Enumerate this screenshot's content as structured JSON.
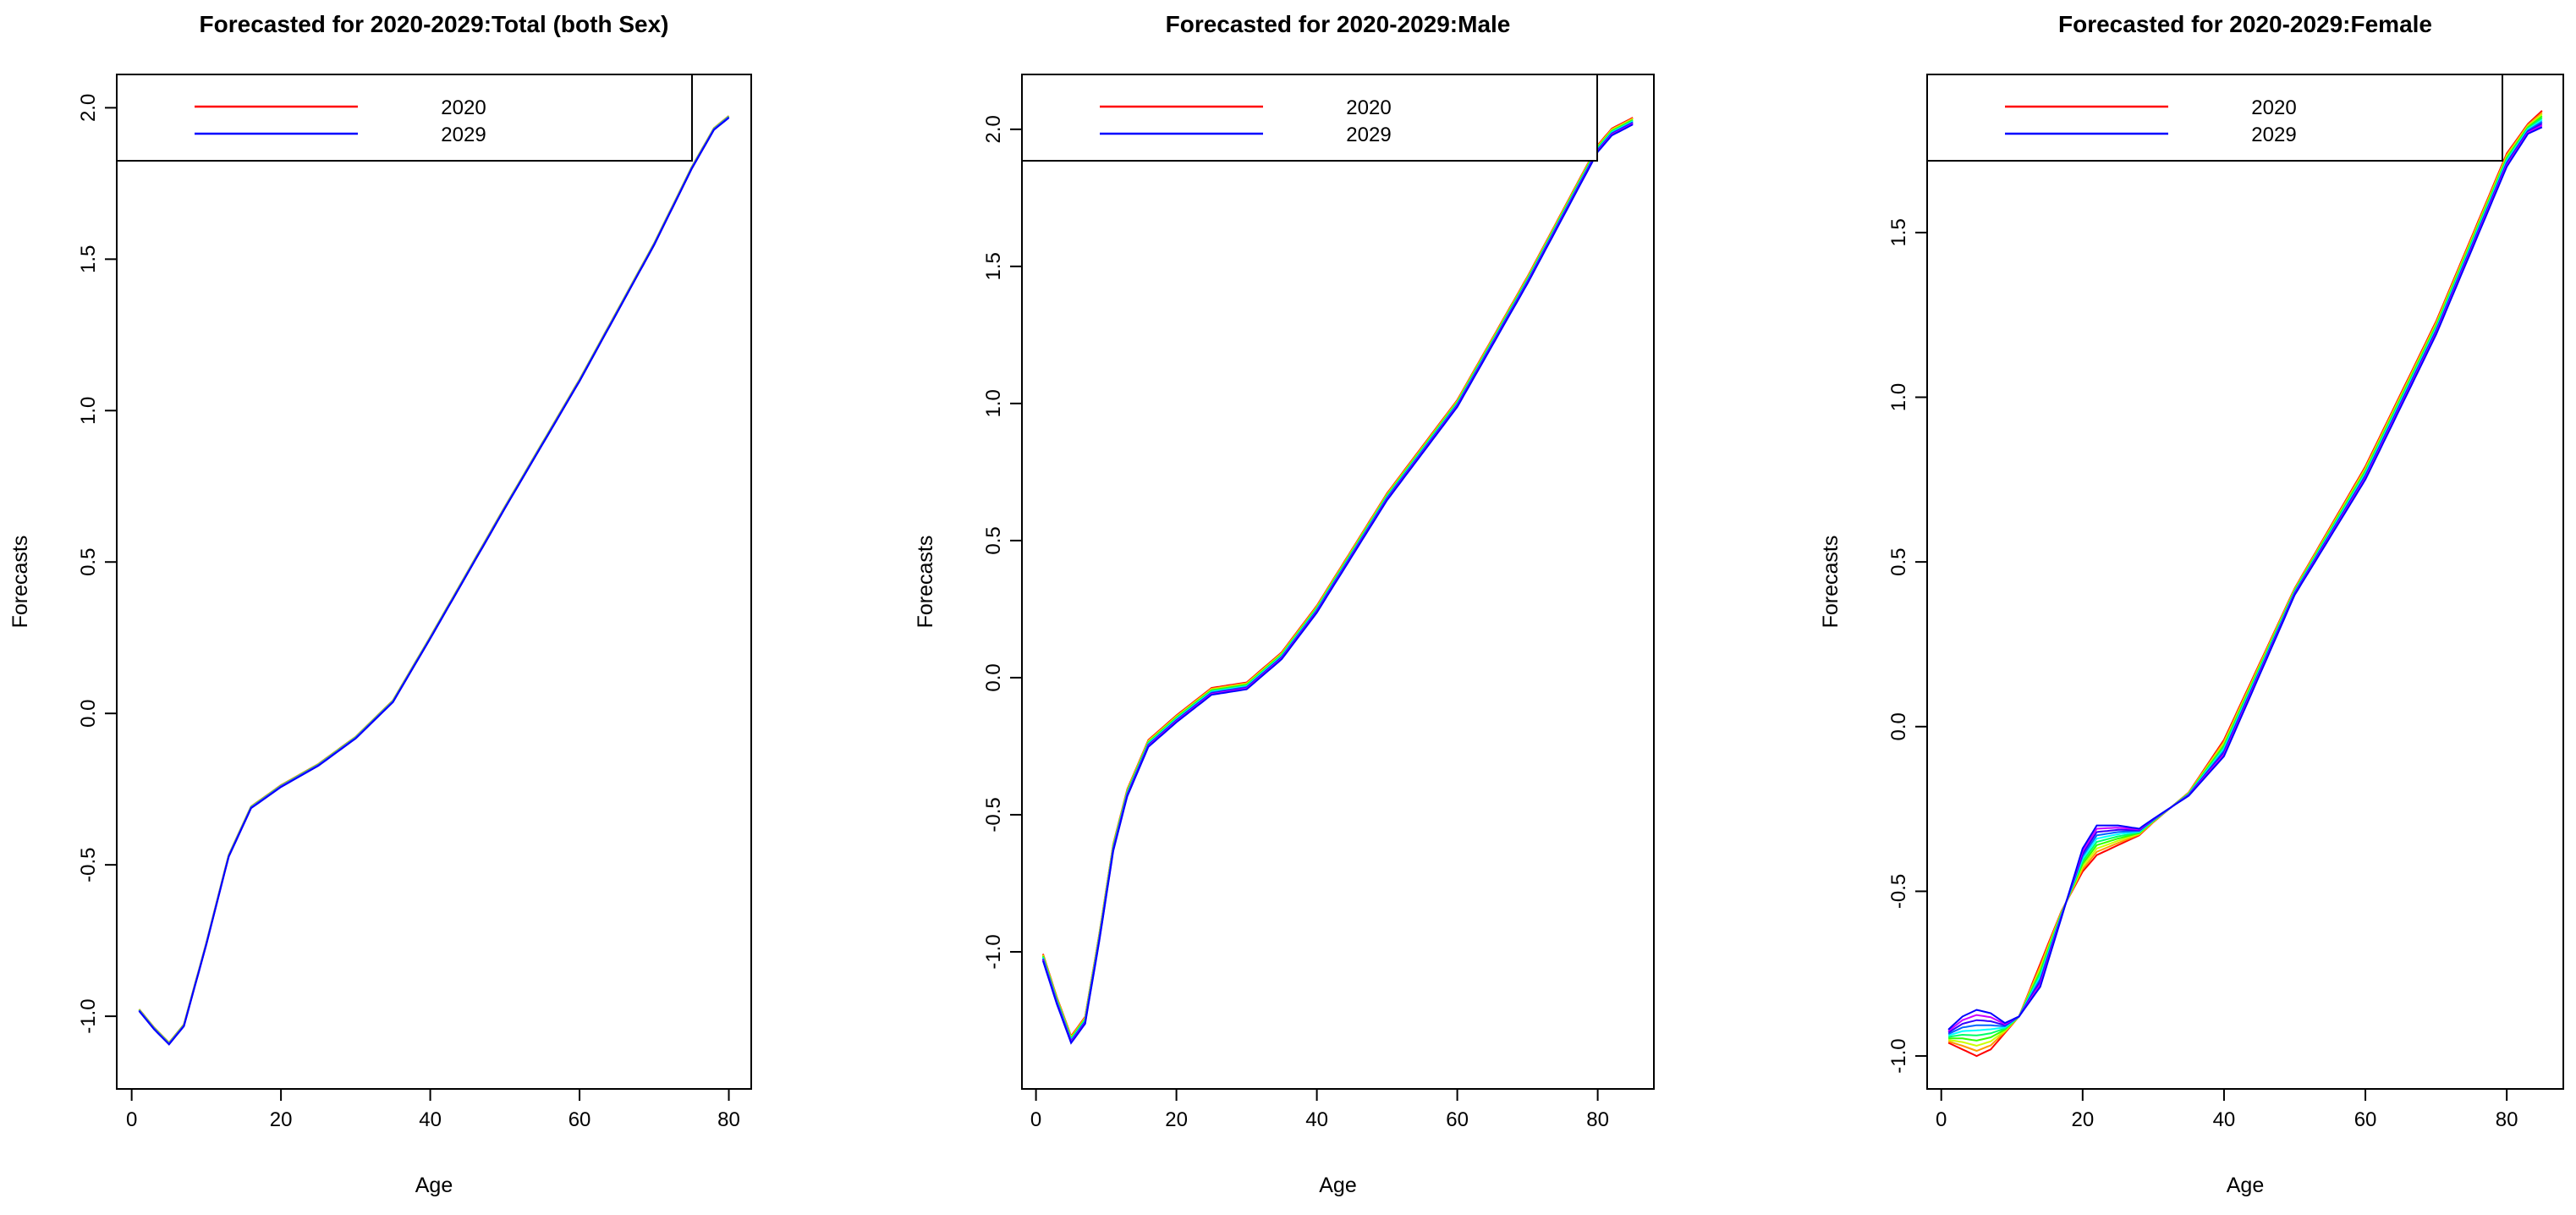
{
  "chart_data": [
    {
      "type": "line",
      "title": "Forecasted for 2020-2029:Total (both Sex)",
      "xlabel": "Age",
      "ylabel": "Forecasts",
      "xlim": [
        -2,
        83
      ],
      "ylim": [
        -1.24,
        2.11
      ],
      "xticks": [
        0,
        20,
        40,
        60,
        80
      ],
      "yticks": [
        -1.0,
        -0.5,
        0.0,
        0.5,
        1.0,
        1.5,
        2.0
      ],
      "legend": {
        "position": "top",
        "entries": [
          {
            "label": "2020",
            "color": "#ff0000"
          },
          {
            "label": "2029",
            "color": "#0000ff"
          }
        ]
      },
      "series_count": 10,
      "series_first": "2020",
      "series_last": "2029",
      "spread": 0.006,
      "x": [
        1,
        3,
        5,
        7,
        10,
        13,
        16,
        20,
        25,
        30,
        35,
        40,
        50,
        60,
        70,
        75,
        78,
        80
      ],
      "base": [
        -0.98,
        -1.04,
        -1.09,
        -1.03,
        -0.76,
        -0.47,
        -0.31,
        -0.24,
        -0.17,
        -0.08,
        0.04,
        0.25,
        0.68,
        1.1,
        1.55,
        1.8,
        1.93,
        1.97
      ]
    },
    {
      "type": "line",
      "title": "Forecasted for 2020-2029:Male",
      "xlabel": "Age",
      "ylabel": "Forecasts",
      "xlim": [
        -2,
        88
      ],
      "ylim": [
        -1.5,
        2.2
      ],
      "xticks": [
        0,
        20,
        40,
        60,
        80
      ],
      "yticks": [
        -1.0,
        -0.5,
        0.0,
        0.5,
        1.0,
        1.5,
        2.0
      ],
      "legend": {
        "position": "top",
        "entries": [
          {
            "label": "2020",
            "color": "#ff0000"
          },
          {
            "label": "2029",
            "color": "#0000ff"
          }
        ]
      },
      "series_count": 10,
      "series_first": "2020",
      "series_last": "2029",
      "spread": 0.025,
      "x": [
        1,
        3,
        5,
        7,
        9,
        11,
        13,
        16,
        20,
        25,
        30,
        35,
        40,
        50,
        60,
        70,
        80,
        82,
        85
      ],
      "base": [
        -1.02,
        -1.18,
        -1.32,
        -1.25,
        -0.95,
        -0.62,
        -0.42,
        -0.24,
        -0.15,
        -0.05,
        -0.03,
        0.08,
        0.25,
        0.66,
        1.0,
        1.45,
        1.93,
        1.99,
        2.03
      ]
    },
    {
      "type": "line",
      "title": "Forecasted for 2020-2029:Female",
      "xlabel": "Age",
      "ylabel": "Forecasts",
      "xlim": [
        -2,
        88
      ],
      "ylim": [
        -1.1,
        1.98
      ],
      "xticks": [
        0,
        20,
        40,
        60,
        80
      ],
      "yticks": [
        -1.0,
        -0.5,
        0.0,
        0.5,
        1.0,
        1.5
      ],
      "legend": {
        "position": "top",
        "entries": [
          {
            "label": "2020",
            "color": "#ff0000"
          },
          {
            "label": "2029",
            "color": "#0000ff"
          }
        ]
      },
      "series_count": 10,
      "series_first": "2020",
      "series_last": "2029",
      "x": [
        1,
        3,
        5,
        7,
        9,
        11,
        14,
        17,
        20,
        22,
        25,
        28,
        30,
        35,
        40,
        50,
        60,
        70,
        80,
        83,
        85
      ],
      "first_year": [
        -0.96,
        -0.98,
        -1.0,
        -0.98,
        -0.93,
        -0.88,
        -0.72,
        -0.56,
        -0.44,
        -0.39,
        -0.36,
        -0.33,
        -0.29,
        -0.2,
        -0.04,
        0.42,
        0.79,
        1.23,
        1.74,
        1.83,
        1.87
      ],
      "last_year": [
        -0.92,
        -0.88,
        -0.86,
        -0.87,
        -0.9,
        -0.88,
        -0.79,
        -0.58,
        -0.37,
        -0.3,
        -0.3,
        -0.31,
        -0.28,
        -0.21,
        -0.09,
        0.4,
        0.75,
        1.19,
        1.7,
        1.8,
        1.82
      ]
    }
  ]
}
